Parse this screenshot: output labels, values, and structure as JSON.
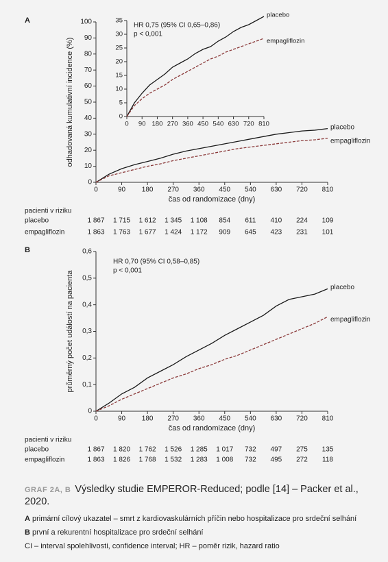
{
  "chart_data": [
    {
      "type": "line",
      "label": "A",
      "ylabel": "odhadovaná kumulativní incidence (%)",
      "xlabel": "čas od randomizace (dny)",
      "x": [
        0,
        45,
        90,
        135,
        180,
        225,
        270,
        315,
        360,
        405,
        450,
        495,
        540,
        585,
        630,
        675,
        720,
        765,
        810
      ],
      "xlim": [
        0,
        810
      ],
      "xticks": [
        0,
        90,
        180,
        270,
        360,
        450,
        540,
        630,
        720,
        810
      ],
      "ylim": [
        0,
        100
      ],
      "yticks": [
        0,
        10,
        20,
        30,
        40,
        50,
        60,
        70,
        80,
        90,
        100
      ],
      "series": [
        {
          "name": "placebo",
          "color": "#1a1a1a",
          "style": "solid",
          "values": [
            0,
            5,
            8.5,
            11,
            13,
            15,
            17.5,
            19.5,
            21,
            22.5,
            24,
            25.5,
            27,
            28.5,
            30,
            31,
            32,
            32.5,
            33.5
          ]
        },
        {
          "name": "empagliflozin",
          "color": "#8b3a3a",
          "style": "dashed",
          "values": [
            0,
            4,
            6,
            8,
            10,
            11.5,
            13.5,
            15,
            16.5,
            18,
            19.5,
            21,
            22,
            23,
            24,
            25,
            26,
            26.5,
            27.5
          ]
        }
      ]
    },
    {
      "type": "line",
      "annotations": [
        "HR 0,75 (95% CI 0,65–0,86)",
        "p < 0,001"
      ],
      "x": [
        0,
        45,
        90,
        135,
        180,
        225,
        270,
        315,
        360,
        405,
        450,
        495,
        540,
        585,
        630,
        675,
        720,
        765,
        810
      ],
      "xlim": [
        0,
        810
      ],
      "xticks": [
        0,
        90,
        180,
        270,
        360,
        450,
        540,
        630,
        720,
        810
      ],
      "ylim": [
        0,
        35
      ],
      "yticks": [
        0,
        5,
        10,
        15,
        20,
        25,
        30,
        35
      ],
      "series": [
        {
          "name": "placebo",
          "color": "#1a1a1a",
          "style": "solid",
          "values": [
            0,
            5,
            8.5,
            11.5,
            13.5,
            15.5,
            18,
            19.5,
            21,
            23,
            24.5,
            25.5,
            27.5,
            29,
            31,
            32.5,
            33.5,
            35,
            36.5
          ]
        },
        {
          "name": "empagliflozin",
          "color": "#8b3a3a",
          "style": "dashed",
          "values": [
            0,
            4,
            6.5,
            8.5,
            10,
            11.5,
            13.5,
            15,
            16.5,
            18,
            19.5,
            21,
            22,
            23.5,
            24.5,
            25.5,
            26.5,
            27.5,
            28.5
          ]
        }
      ]
    },
    {
      "type": "line",
      "label": "B",
      "ylabel": "průměrný počet událostí na pacienta",
      "xlabel": "čas od randomizace (dny)",
      "annotations": [
        "HR 0,70 (95% CI 0,58–0,85)",
        "p < 0,001"
      ],
      "x": [
        0,
        45,
        90,
        135,
        180,
        225,
        270,
        315,
        360,
        405,
        450,
        495,
        540,
        585,
        630,
        675,
        720,
        765,
        810
      ],
      "xlim": [
        0,
        810
      ],
      "xticks": [
        0,
        90,
        180,
        270,
        360,
        450,
        540,
        630,
        720,
        810
      ],
      "ylim": [
        0,
        0.6
      ],
      "yticks": [
        0,
        {
          "value": 0.1,
          "label": "0,1"
        },
        {
          "value": 0.2,
          "label": "0,2"
        },
        {
          "value": 0.3,
          "label": "0,3"
        },
        {
          "value": 0.4,
          "label": "0,4"
        },
        {
          "value": 0.5,
          "label": "0,5"
        },
        {
          "value": 0.6,
          "label": "0,6"
        }
      ],
      "series": [
        {
          "name": "placebo",
          "color": "#1a1a1a",
          "style": "solid",
          "values": [
            0,
            0.03,
            0.065,
            0.09,
            0.125,
            0.15,
            0.175,
            0.205,
            0.23,
            0.255,
            0.285,
            0.31,
            0.335,
            0.36,
            0.395,
            0.42,
            0.43,
            0.44,
            0.46
          ]
        },
        {
          "name": "empagliflozin",
          "color": "#8b3a3a",
          "style": "dashed",
          "values": [
            0,
            0.02,
            0.045,
            0.065,
            0.085,
            0.105,
            0.125,
            0.14,
            0.16,
            0.175,
            0.195,
            0.21,
            0.23,
            0.25,
            0.27,
            0.29,
            0.31,
            0.33,
            0.355
          ]
        }
      ]
    }
  ],
  "risk_tables": [
    {
      "header": "pacienti v riziku",
      "rows": [
        {
          "name": "placebo",
          "values": [
            "1 867",
            "1 715",
            "1 612",
            "1 345",
            "1 108",
            "854",
            "611",
            "410",
            "224",
            "109"
          ]
        },
        {
          "name": "empagliflozin",
          "values": [
            "1 863",
            "1 763",
            "1 677",
            "1 424",
            "1 172",
            "909",
            "645",
            "423",
            "231",
            "101"
          ]
        }
      ]
    },
    {
      "header": "pacienti v riziku",
      "rows": [
        {
          "name": "placebo",
          "values": [
            "1 867",
            "1 820",
            "1 762",
            "1 526",
            "1 285",
            "1 017",
            "732",
            "497",
            "275",
            "135"
          ]
        },
        {
          "name": "empagliflozin",
          "values": [
            "1 863",
            "1 826",
            "1 768",
            "1 532",
            "1 283",
            "1 008",
            "732",
            "495",
            "272",
            "118"
          ]
        }
      ]
    }
  ],
  "caption": {
    "label": "GRAF 2A, B",
    "title": "Výsledky studie EMPEROR-Reduced; podle [14] – Packer et al., 2020.",
    "notes": [
      {
        "key": "A",
        "text": "primární cílový ukazatel – smrt z kardiovaskulárních příčin nebo hospitalizace pro srdeční selhání"
      },
      {
        "key": "B",
        "text": "první a rekurentní hospitalizace pro srdeční selhání"
      },
      {
        "text": "CI – interval spolehlivosti, confidence interval; HR – poměr rizik, hazard ratio"
      }
    ]
  }
}
